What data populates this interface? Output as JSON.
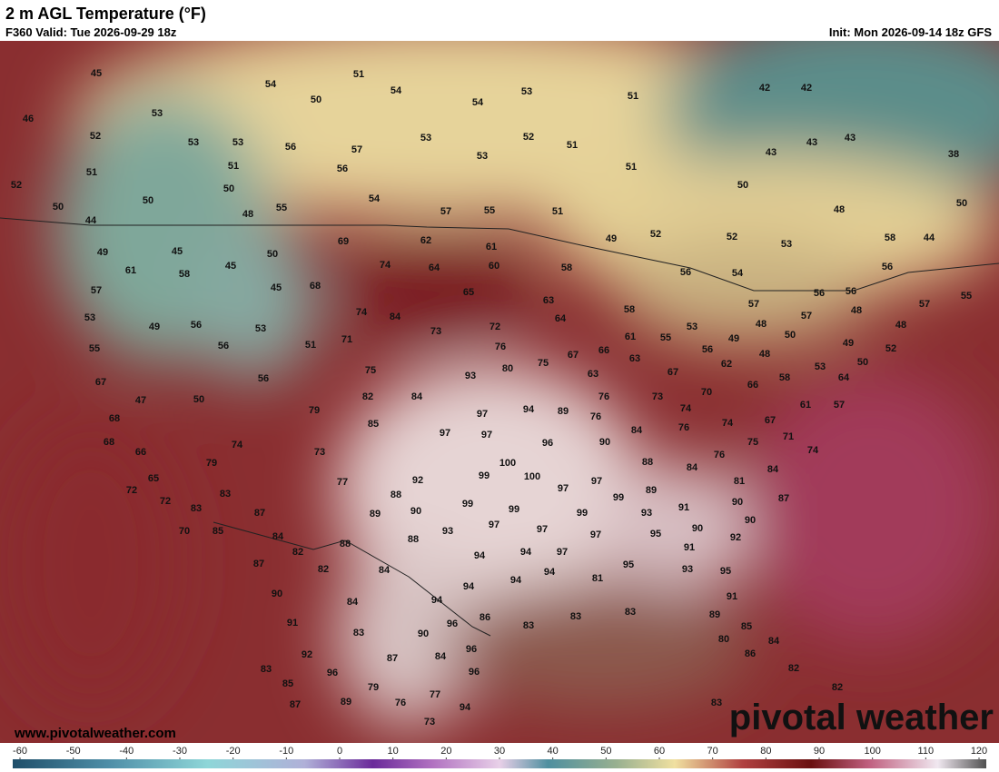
{
  "header": {
    "title": "2 m AGL Temperature (°F)",
    "valid": "F360 Valid: Tue 2026-09-29 18z",
    "init": "Init: Mon 2026-09-14 18z GFS"
  },
  "station_values": [
    45,
    46,
    52,
    53,
    54,
    51,
    54,
    50,
    53,
    53,
    56,
    57,
    51,
    51,
    56,
    52,
    50,
    50,
    50,
    48,
    55,
    54,
    44,
    49,
    45,
    50,
    61,
    58,
    45,
    45,
    68,
    57,
    53,
    49,
    56,
    53,
    51,
    55,
    56,
    56,
    67,
    47,
    50,
    68,
    68,
    66,
    74,
    79,
    65,
    72,
    72,
    83,
    83,
    70,
    85,
    87,
    84,
    82,
    87,
    82,
    90,
    91,
    92,
    83,
    85,
    87,
    96,
    89,
    79,
    76,
    77,
    73,
    94,
    87,
    84,
    90,
    83,
    84,
    94,
    96,
    96,
    96,
    86,
    53,
    52,
    51,
    53,
    54,
    53,
    51,
    51,
    57,
    55,
    51,
    69,
    62,
    61,
    74,
    64,
    60,
    65,
    58,
    49,
    52,
    52,
    53,
    48,
    50,
    43,
    43,
    43,
    42,
    42,
    38,
    50,
    58,
    44,
    56,
    56,
    54,
    57,
    55,
    56,
    56,
    48,
    48,
    57,
    57,
    48,
    50,
    49,
    52,
    50,
    53,
    48,
    49,
    56,
    55,
    53,
    61,
    58,
    63,
    64,
    74,
    84,
    73,
    72,
    71,
    76,
    80,
    75,
    67,
    66,
    63,
    63,
    67,
    62,
    58,
    66,
    64,
    61,
    57,
    70,
    73,
    76,
    75,
    82,
    84,
    93,
    97,
    94,
    89,
    76,
    84,
    76,
    74,
    74,
    67,
    75,
    71,
    74,
    76,
    84,
    84,
    81,
    87,
    85,
    79,
    73,
    77,
    97,
    97,
    96,
    90,
    88,
    100,
    99,
    100,
    92,
    97,
    97,
    88,
    89,
    90,
    99,
    99,
    97,
    99,
    99,
    89,
    91,
    90,
    93,
    97,
    97,
    93,
    95,
    90,
    90,
    92,
    88,
    88,
    94,
    94,
    97,
    91,
    84,
    94,
    94,
    94,
    81,
    95,
    93,
    95,
    83,
    83,
    83,
    91,
    89,
    85,
    80,
    86,
    84,
    82,
    82,
    83
  ],
  "colorbar": {
    "ticks": [
      -60,
      -50,
      -40,
      -30,
      -20,
      -10,
      0,
      10,
      20,
      30,
      40,
      50,
      60,
      70,
      80,
      90,
      100,
      110,
      120
    ]
  },
  "footer": {
    "website": "www.pivotalweather.com",
    "watermark": "pivotal weather"
  }
}
